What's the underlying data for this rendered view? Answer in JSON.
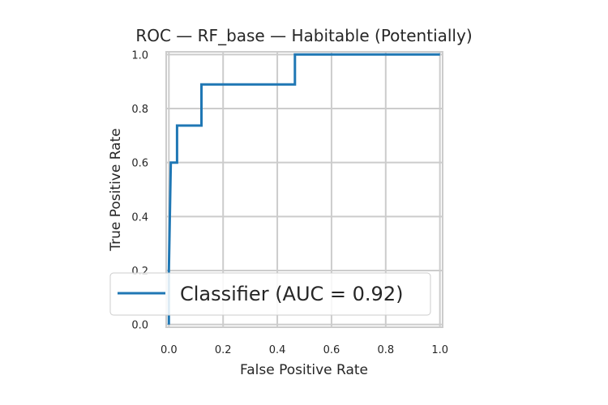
{
  "chart_data": {
    "type": "line",
    "title": "ROC — RF_base — Habitable (Potentially)",
    "xlabel": "False Positive Rate",
    "ylabel": "True Positive Rate",
    "xlim": [
      -0.01,
      1.01
    ],
    "ylim": [
      -0.01,
      1.01
    ],
    "xticks": [
      "0.0",
      "0.2",
      "0.4",
      "0.6",
      "0.8",
      "1.0"
    ],
    "yticks": [
      "0.0",
      "0.2",
      "0.4",
      "0.6",
      "0.8",
      "1.0"
    ],
    "grid": true,
    "legend_position": "lower-right",
    "series": [
      {
        "name": "Classifier (AUC = 0.92)",
        "color": "#1f77b4",
        "x": [
          0.0,
          0.0,
          0.0,
          0.007,
          0.007,
          0.03,
          0.03,
          0.12,
          0.12,
          0.465,
          0.465,
          1.0
        ],
        "y": [
          0.0,
          0.2,
          0.2,
          0.6,
          0.6,
          0.6,
          0.737,
          0.737,
          0.889,
          0.889,
          1.0,
          1.0
        ]
      }
    ]
  }
}
